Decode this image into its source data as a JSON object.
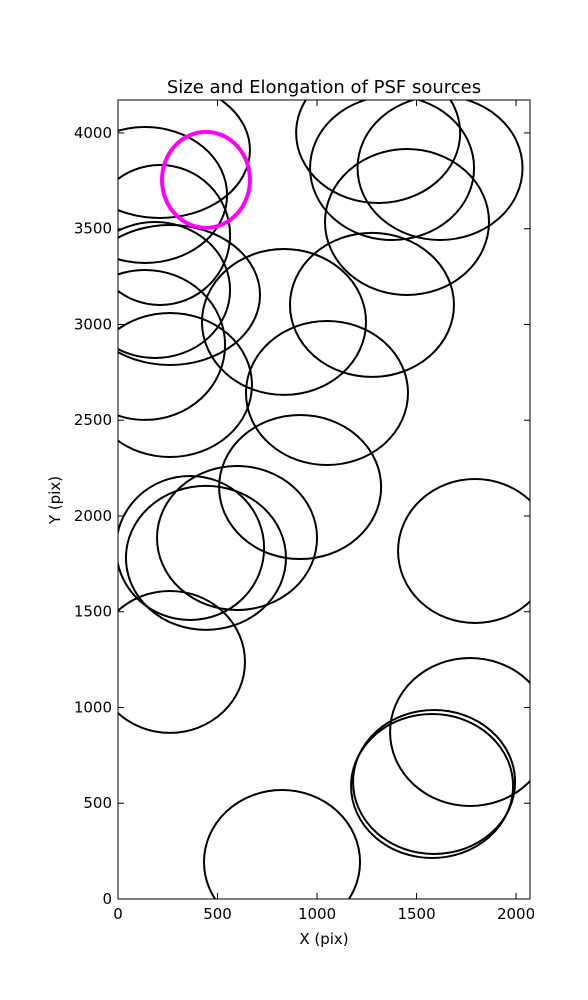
{
  "chart_data": {
    "type": "ellipse",
    "title": "Size and Elongation of PSF sources",
    "xlabel": "X (pix)",
    "ylabel": "Y (pix)",
    "xlim": [
      0,
      2070
    ],
    "ylim": [
      0,
      4172
    ],
    "xticks": [
      0,
      500,
      1000,
      1500,
      2000
    ],
    "yticks": [
      0,
      500,
      1000,
      1500,
      2000,
      2500,
      3000,
      3500,
      4000
    ],
    "ellipses": [
      {
        "x": 211,
        "y": 3911,
        "width": 904,
        "height": 710,
        "color": "#000000",
        "linewidth": 2
      },
      {
        "x": 136,
        "y": 3676,
        "width": 824,
        "height": 710,
        "color": "#000000",
        "linewidth": 2
      },
      {
        "x": 211,
        "y": 3467,
        "width": 704,
        "height": 731,
        "color": "#000000",
        "linewidth": 2
      },
      {
        "x": 186,
        "y": 3180,
        "width": 754,
        "height": 710,
        "color": "#000000",
        "linewidth": 2
      },
      {
        "x": 261,
        "y": 3154,
        "width": 905,
        "height": 731,
        "color": "#000000",
        "linewidth": 2
      },
      {
        "x": 136,
        "y": 2893,
        "width": 804,
        "height": 783,
        "color": "#000000",
        "linewidth": 2
      },
      {
        "x": 261,
        "y": 2684,
        "width": 824,
        "height": 752,
        "color": "#000000",
        "linewidth": 2
      },
      {
        "x": 834,
        "y": 3013,
        "width": 824,
        "height": 762,
        "color": "#000000",
        "linewidth": 2
      },
      {
        "x": 1050,
        "y": 2642,
        "width": 814,
        "height": 752,
        "color": "#000000",
        "linewidth": 2
      },
      {
        "x": 1276,
        "y": 3102,
        "width": 824,
        "height": 752,
        "color": "#000000",
        "linewidth": 2
      },
      {
        "x": 1307,
        "y": 4000,
        "width": 824,
        "height": 731,
        "color": "#000000",
        "linewidth": 2
      },
      {
        "x": 1377,
        "y": 3817,
        "width": 824,
        "height": 752,
        "color": "#000000",
        "linewidth": 2
      },
      {
        "x": 1618,
        "y": 3817,
        "width": 829,
        "height": 752,
        "color": "#000000",
        "linewidth": 2
      },
      {
        "x": 1452,
        "y": 3535,
        "width": 824,
        "height": 762,
        "color": "#000000",
        "linewidth": 2
      },
      {
        "x": 915,
        "y": 2151,
        "width": 814,
        "height": 752,
        "color": "#000000",
        "linewidth": 2
      },
      {
        "x": 598,
        "y": 1885,
        "width": 804,
        "height": 752,
        "color": "#000000",
        "linewidth": 2
      },
      {
        "x": 362,
        "y": 1833,
        "width": 744,
        "height": 752,
        "color": "#000000",
        "linewidth": 2
      },
      {
        "x": 442,
        "y": 1781,
        "width": 804,
        "height": 752,
        "color": "#000000",
        "linewidth": 2
      },
      {
        "x": 261,
        "y": 1238,
        "width": 754,
        "height": 741,
        "color": "#000000",
        "linewidth": 2
      },
      {
        "x": 1794,
        "y": 1817,
        "width": 774,
        "height": 752,
        "color": "#000000",
        "linewidth": 2
      },
      {
        "x": 1769,
        "y": 872,
        "width": 804,
        "height": 773,
        "color": "#000000",
        "linewidth": 2
      },
      {
        "x": 1588,
        "y": 611,
        "width": 814,
        "height": 752,
        "color": "#000000",
        "linewidth": 2
      },
      {
        "x": 1578,
        "y": 590,
        "width": 814,
        "height": 752,
        "color": "#000000",
        "linewidth": 2
      },
      {
        "x": 824,
        "y": 193,
        "width": 784,
        "height": 752,
        "color": "#000000",
        "linewidth": 2
      },
      {
        "x": 442,
        "y": 3755,
        "width": 442,
        "height": 501,
        "color": "#ff00ff",
        "linewidth": 4
      }
    ]
  }
}
